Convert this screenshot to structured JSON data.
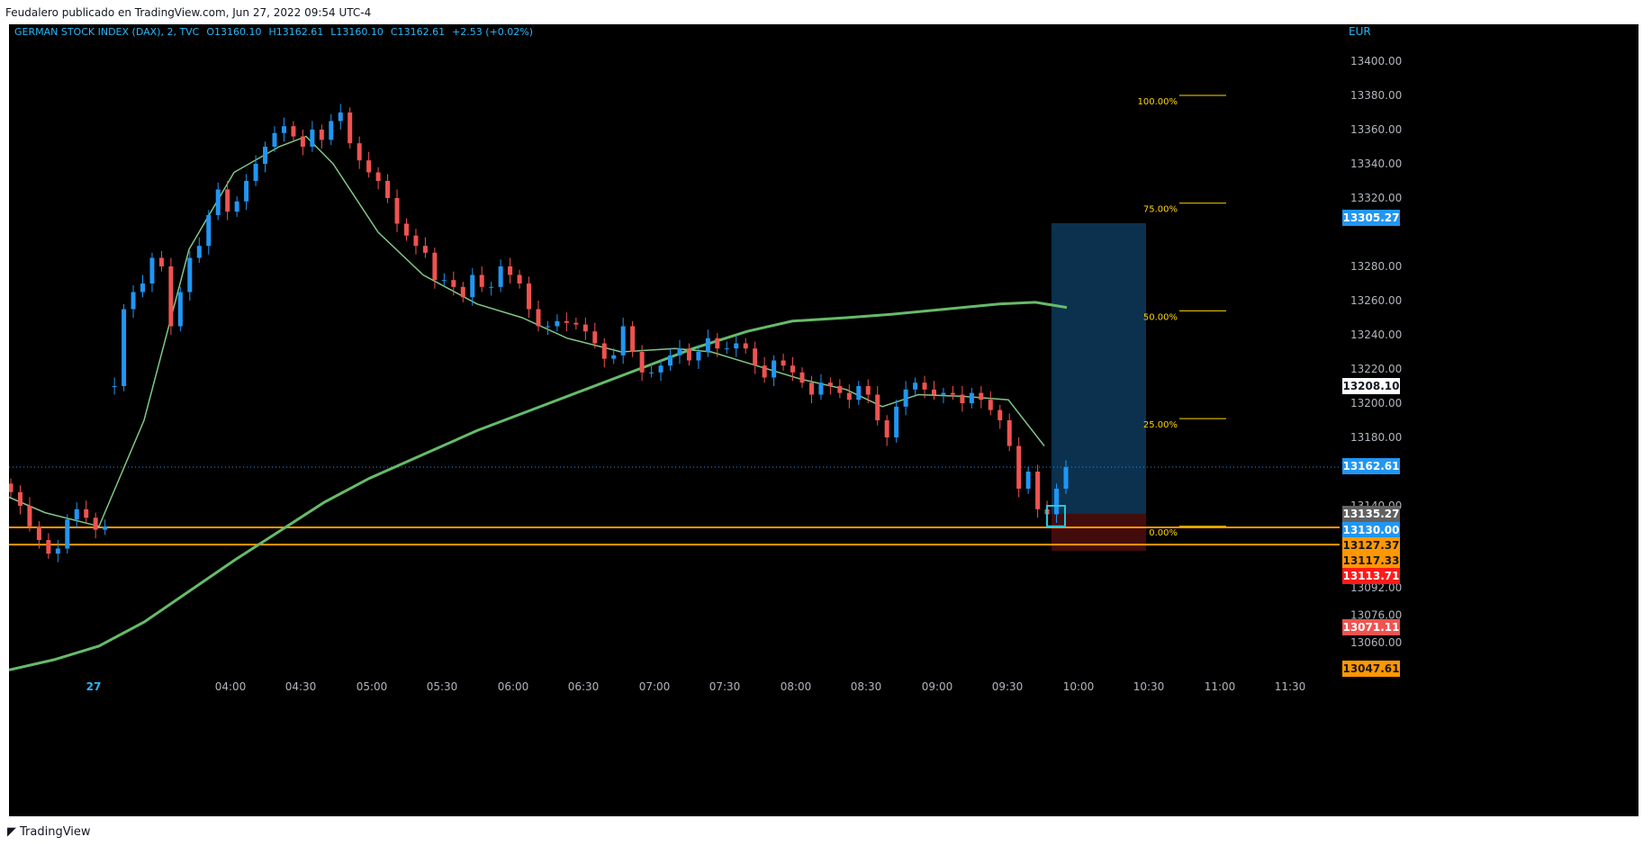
{
  "header": {
    "published": "Feudalero publicado en TradingView.com, Jun 27, 2022 09:54 UTC-4"
  },
  "footer": {
    "brand_icon": "tradingview-logo-icon",
    "brand": "TradingView"
  },
  "legend": {
    "symbol": "GERMAN STOCK INDEX (DAX), 2, TVC",
    "open": "O13160.10",
    "high": "H13162.61",
    "low": "L13160.10",
    "close": "C13162.61",
    "change": "+2.53 (+0.02%)"
  },
  "currency": "EUR",
  "colors": {
    "up": "#2196f3",
    "down": "#ef5350",
    "ma_fast": "#81c784",
    "ma_slow": "#66bb6a",
    "level_line": "#ff9800",
    "fib": "#ffd600",
    "target_zone": "#0d3a5c",
    "stop_zone": "#4a0d0d"
  },
  "chart_data": {
    "type": "candlestick",
    "ylim": [
      13040,
      13410
    ],
    "y_ticks": [
      "13400.00",
      "13380.00",
      "13360.00",
      "13340.00",
      "13320.00",
      "13280.00",
      "13260.00",
      "13240.00",
      "13220.00",
      "13200.00",
      "13180.00",
      "13140.00",
      "13092.00",
      "13076.00",
      "13060.00"
    ],
    "x_ticks": [
      "27",
      "04:00",
      "04:30",
      "05:00",
      "05:30",
      "06:00",
      "06:30",
      "07:00",
      "07:30",
      "08:00",
      "08:30",
      "09:00",
      "09:30",
      "10:00",
      "10:30",
      "11:00",
      "11:30"
    ],
    "price_labels": [
      {
        "value": 13305.27,
        "text": "13305.27",
        "bg": "#2196f3",
        "fg": "#ffffff"
      },
      {
        "value": 13208.1,
        "text": "13208.10",
        "bg": "#ffffff",
        "fg": "#131722"
      },
      {
        "value": 13162.61,
        "text": "13162.61",
        "bg": "#2196f3",
        "fg": "#ffffff"
      },
      {
        "value": 13135.27,
        "text": "13135.27",
        "bg": "#616161",
        "fg": "#ffffff"
      },
      {
        "value": 13130.0,
        "text": "13130.00",
        "bg": "#2196f3",
        "fg": "#ffffff"
      },
      {
        "value": 13127.37,
        "text": "13127.37",
        "bg": "#ff9800",
        "fg": "#131722"
      },
      {
        "value": 13117.33,
        "text": "13117.33",
        "bg": "#ff9800",
        "fg": "#131722"
      },
      {
        "value": 13113.71,
        "text": "13113.71",
        "bg": "#ff1a1a",
        "fg": "#ffffff"
      },
      {
        "value": 13071.11,
        "text": "13071.11",
        "bg": "#ef5350",
        "fg": "#ffffff"
      },
      {
        "value": 13047.61,
        "text": "13047.61",
        "bg": "#ff9800",
        "fg": "#131722"
      }
    ],
    "horizontal_levels": [
      13127.37,
      13117.33
    ],
    "last_price": 13162.61,
    "fib_levels": [
      {
        "label": "100.00%",
        "value": 13380
      },
      {
        "label": "75.00%",
        "value": 13317
      },
      {
        "label": "50.00%",
        "value": 13254
      },
      {
        "label": "25.00%",
        "value": 13191
      },
      {
        "label": "0.00%",
        "value": 13128
      }
    ],
    "position": {
      "entry": 13135.27,
      "target": 13305.27,
      "stop": 13113.71
    },
    "closes": [
      13148,
      13140,
      13128,
      13120,
      13112,
      13115,
      13132,
      13138,
      13133,
      13126,
      13128,
      13210,
      13255,
      13265,
      13270,
      13285,
      13280,
      13245,
      13265,
      13285,
      13292,
      13310,
      13325,
      13312,
      13318,
      13330,
      13340,
      13350,
      13358,
      13362,
      13356,
      13350,
      13360,
      13354,
      13365,
      13370,
      13352,
      13342,
      13335,
      13330,
      13320,
      13305,
      13298,
      13292,
      13288,
      13272,
      13272,
      13268,
      13262,
      13275,
      13268,
      13268,
      13280,
      13275,
      13270,
      13255,
      13245,
      13245,
      13248,
      13247,
      13246,
      13242,
      13235,
      13226,
      13228,
      13245,
      13230,
      13218,
      13218,
      13222,
      13228,
      13232,
      13225,
      13230,
      13238,
      13232,
      13232,
      13235,
      13232,
      13222,
      13215,
      13225,
      13222,
      13218,
      13212,
      13205,
      13212,
      13210,
      13206,
      13202,
      13210,
      13205,
      13190,
      13180,
      13198,
      13208,
      13212,
      13208,
      13205,
      13206,
      13205,
      13200,
      13206,
      13202,
      13196,
      13190,
      13175,
      13150,
      13160,
      13138,
      13135,
      13150,
      13162.61
    ],
    "ma_fast": [
      [
        0,
        13145
      ],
      [
        40,
        13136
      ],
      [
        100,
        13128
      ],
      [
        150,
        13190
      ],
      [
        200,
        13290
      ],
      [
        250,
        13335
      ],
      [
        300,
        13350
      ],
      [
        330,
        13356
      ],
      [
        360,
        13340
      ],
      [
        410,
        13300
      ],
      [
        460,
        13275
      ],
      [
        520,
        13258
      ],
      [
        570,
        13250
      ],
      [
        620,
        13238
      ],
      [
        680,
        13230
      ],
      [
        740,
        13232
      ],
      [
        780,
        13230
      ],
      [
        830,
        13222
      ],
      [
        880,
        13214
      ],
      [
        930,
        13208
      ],
      [
        970,
        13198
      ],
      [
        1010,
        13205
      ],
      [
        1060,
        13204
      ],
      [
        1110,
        13202
      ],
      [
        1150,
        13175
      ]
    ],
    "ma_slow": [
      [
        0,
        13044
      ],
      [
        50,
        13050
      ],
      [
        100,
        13058
      ],
      [
        150,
        13072
      ],
      [
        200,
        13090
      ],
      [
        250,
        13108
      ],
      [
        300,
        13125
      ],
      [
        350,
        13142
      ],
      [
        400,
        13156
      ],
      [
        460,
        13170
      ],
      [
        520,
        13184
      ],
      [
        580,
        13196
      ],
      [
        640,
        13208
      ],
      [
        700,
        13220
      ],
      [
        760,
        13232
      ],
      [
        820,
        13242
      ],
      [
        870,
        13248
      ],
      [
        930,
        13250
      ],
      [
        980,
        13252
      ],
      [
        1040,
        13255
      ],
      [
        1100,
        13258
      ],
      [
        1140,
        13259
      ],
      [
        1175,
        13256
      ]
    ]
  }
}
